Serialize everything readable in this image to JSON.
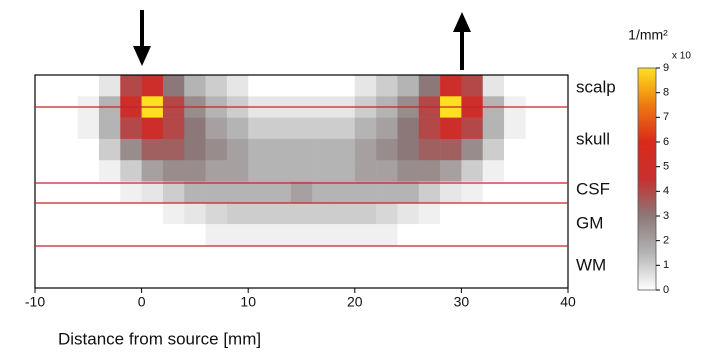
{
  "chart_data": {
    "type": "heatmap",
    "x_label": "Distance from source [mm]",
    "xlim": [
      -10,
      40
    ],
    "xticks": [
      -10,
      0,
      10,
      20,
      30,
      40
    ],
    "x_edges": [
      -6,
      -4,
      -2,
      0,
      2,
      4,
      6,
      8,
      10,
      12,
      14,
      16,
      18,
      20,
      22,
      24,
      26,
      28,
      30,
      32,
      34,
      36
    ],
    "z": [
      [
        0,
        0.5,
        4,
        5,
        3,
        1.5,
        1,
        0.5,
        0,
        0,
        0,
        0,
        0,
        0.5,
        1,
        1.5,
        3,
        5,
        4,
        0.5,
        0
      ],
      [
        0.3,
        1.5,
        5,
        9,
        4,
        2.5,
        1.5,
        1,
        0.5,
        0.5,
        0.5,
        0.5,
        0.5,
        1,
        1.5,
        2.5,
        4,
        9,
        5,
        1.5,
        0.3
      ],
      [
        0.3,
        1.5,
        4,
        5,
        4,
        3,
        2,
        1.5,
        1,
        1,
        1,
        1,
        1,
        1.5,
        2,
        3,
        4,
        5,
        4,
        1.5,
        0.3
      ],
      [
        0,
        1,
        2.5,
        3.5,
        3.5,
        3,
        2.5,
        2,
        1.5,
        1.5,
        1.5,
        1.5,
        1.5,
        2,
        2.5,
        3,
        3.5,
        3.5,
        2.5,
        1,
        0
      ],
      [
        0,
        0.3,
        1,
        2,
        2.5,
        2.5,
        2,
        2,
        1.5,
        1.5,
        1.5,
        1.5,
        1.5,
        2,
        2,
        2.5,
        2.5,
        2,
        1,
        0.3,
        0
      ],
      [
        0,
        0,
        0.3,
        0.5,
        1,
        1.5,
        1.5,
        1.5,
        1.5,
        1.5,
        2,
        1.5,
        1.5,
        1.5,
        1.5,
        1.5,
        1,
        0.5,
        0.3,
        0,
        0
      ],
      [
        0,
        0,
        0,
        0,
        0.3,
        0.5,
        0.8,
        1,
        1,
        1,
        1,
        1,
        1,
        1,
        0.8,
        0.5,
        0.3,
        0,
        0,
        0,
        0
      ],
      [
        0,
        0,
        0,
        0,
        0,
        0,
        0.3,
        0.3,
        0.3,
        0.3,
        0.3,
        0.3,
        0.3,
        0.3,
        0.3,
        0,
        0,
        0,
        0,
        0,
        0
      ]
    ],
    "zlim": [
      0,
      9
    ],
    "zticks": [
      0,
      1,
      2,
      3,
      4,
      5,
      6,
      7,
      8,
      9
    ],
    "colormap": [
      "#ffffff",
      "#b4b4b4",
      "#8c7878",
      "#c83030",
      "#d82a1a",
      "#ee7a10",
      "#ffe020"
    ],
    "colorbar_label": "1/mm²",
    "colorbar_scale": "x 10",
    "layers": [
      "scalp",
      "skull",
      "CSF",
      "GM",
      "WM"
    ],
    "boundary_color": "#c0262a"
  }
}
